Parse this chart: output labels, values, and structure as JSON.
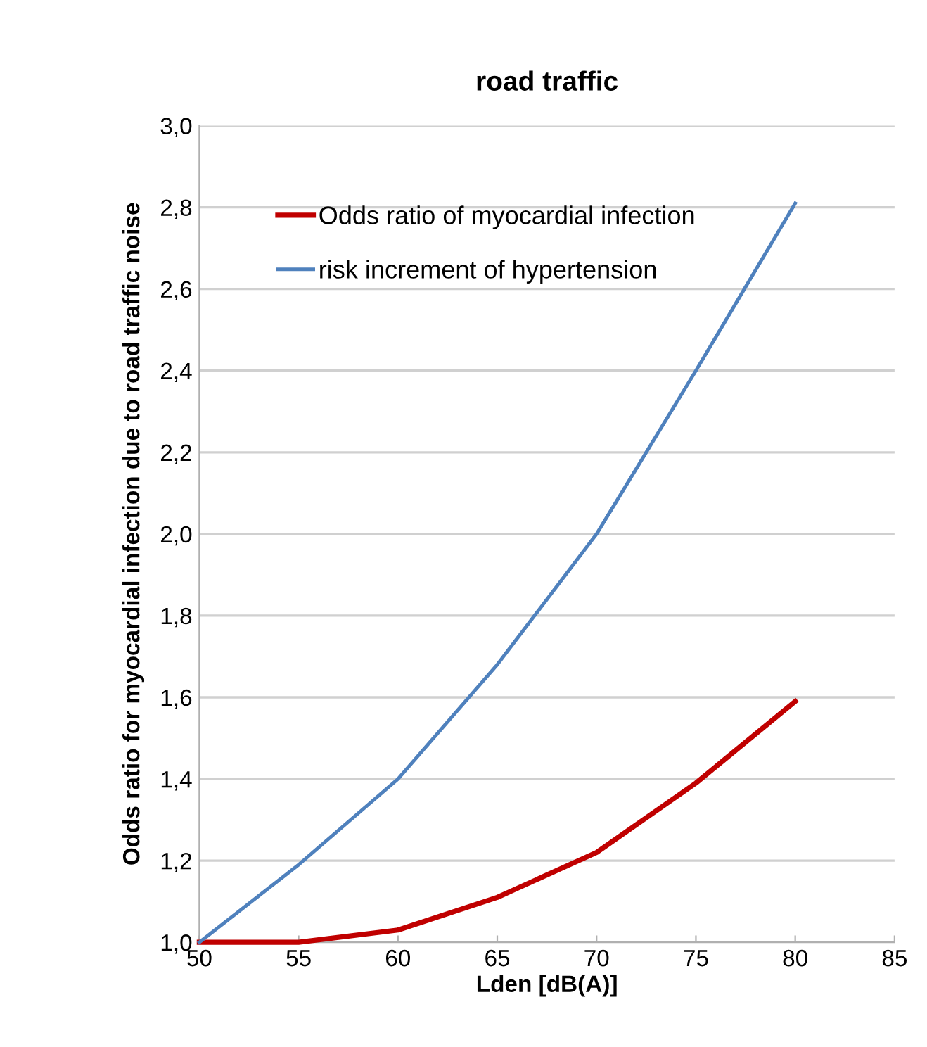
{
  "chart_data": {
    "type": "line",
    "title": "road traffic",
    "xlabel": "Lden [dB(A)]",
    "ylabel": "Odds ratio for myocardial infection due to road traffic noise",
    "x": [
      50,
      55,
      60,
      65,
      70,
      75,
      80
    ],
    "series": [
      {
        "name": "Odds ratio of myocardial infection",
        "color": "#c00000",
        "values": [
          1.0,
          1.0,
          1.03,
          1.11,
          1.22,
          1.39,
          1.59
        ]
      },
      {
        "name": "risk increment of hypertension",
        "color": "#4f81bd",
        "values": [
          1.0,
          1.19,
          1.4,
          1.68,
          2.0,
          2.4,
          2.81
        ]
      }
    ],
    "xlim": [
      50,
      85
    ],
    "xticks": [
      50,
      55,
      60,
      65,
      70,
      75,
      80,
      85
    ],
    "ylim": [
      1.0,
      3.0
    ],
    "yticks": [
      {
        "value": 1.0,
        "label": "1,0"
      },
      {
        "value": 1.2,
        "label": "1,2"
      },
      {
        "value": 1.4,
        "label": "1,4"
      },
      {
        "value": 1.6,
        "label": "1,6"
      },
      {
        "value": 1.8,
        "label": "1,8"
      },
      {
        "value": 2.0,
        "label": "2,0"
      },
      {
        "value": 2.2,
        "label": "2,2"
      },
      {
        "value": 2.4,
        "label": "2,4"
      },
      {
        "value": 2.6,
        "label": "2,6"
      },
      {
        "value": 2.8,
        "label": "2,8"
      },
      {
        "value": 3.0,
        "label": "3,0"
      }
    ],
    "grid": "y",
    "legend": "top left",
    "marker": "none",
    "line_style": "solid"
  }
}
